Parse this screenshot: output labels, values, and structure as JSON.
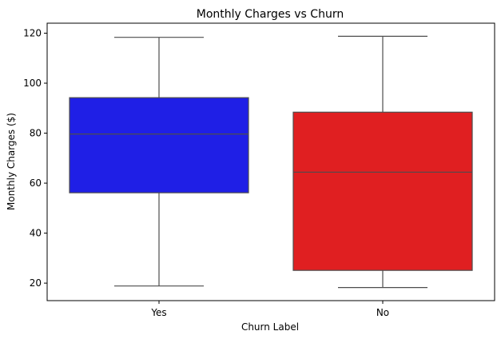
{
  "chart_data": {
    "type": "box",
    "title": "Monthly Charges vs Churn",
    "xlabel": "Churn Label",
    "ylabel": "Monthly Charges ($)",
    "ylim": [
      13.0,
      124.0
    ],
    "yticks": [
      20,
      40,
      60,
      80,
      100,
      120
    ],
    "grid": false,
    "categories": [
      "Yes",
      "No"
    ],
    "boxes": [
      {
        "category": "Yes",
        "color": "#1f1fe6",
        "whisker_low": 18.85,
        "q1": 56.15,
        "median": 79.65,
        "q3": 94.2,
        "whisker_high": 118.35
      },
      {
        "category": "No",
        "color": "#e01f21",
        "whisker_low": 18.25,
        "q1": 25.1,
        "median": 64.4,
        "q3": 88.4,
        "whisker_high": 118.75
      }
    ]
  }
}
